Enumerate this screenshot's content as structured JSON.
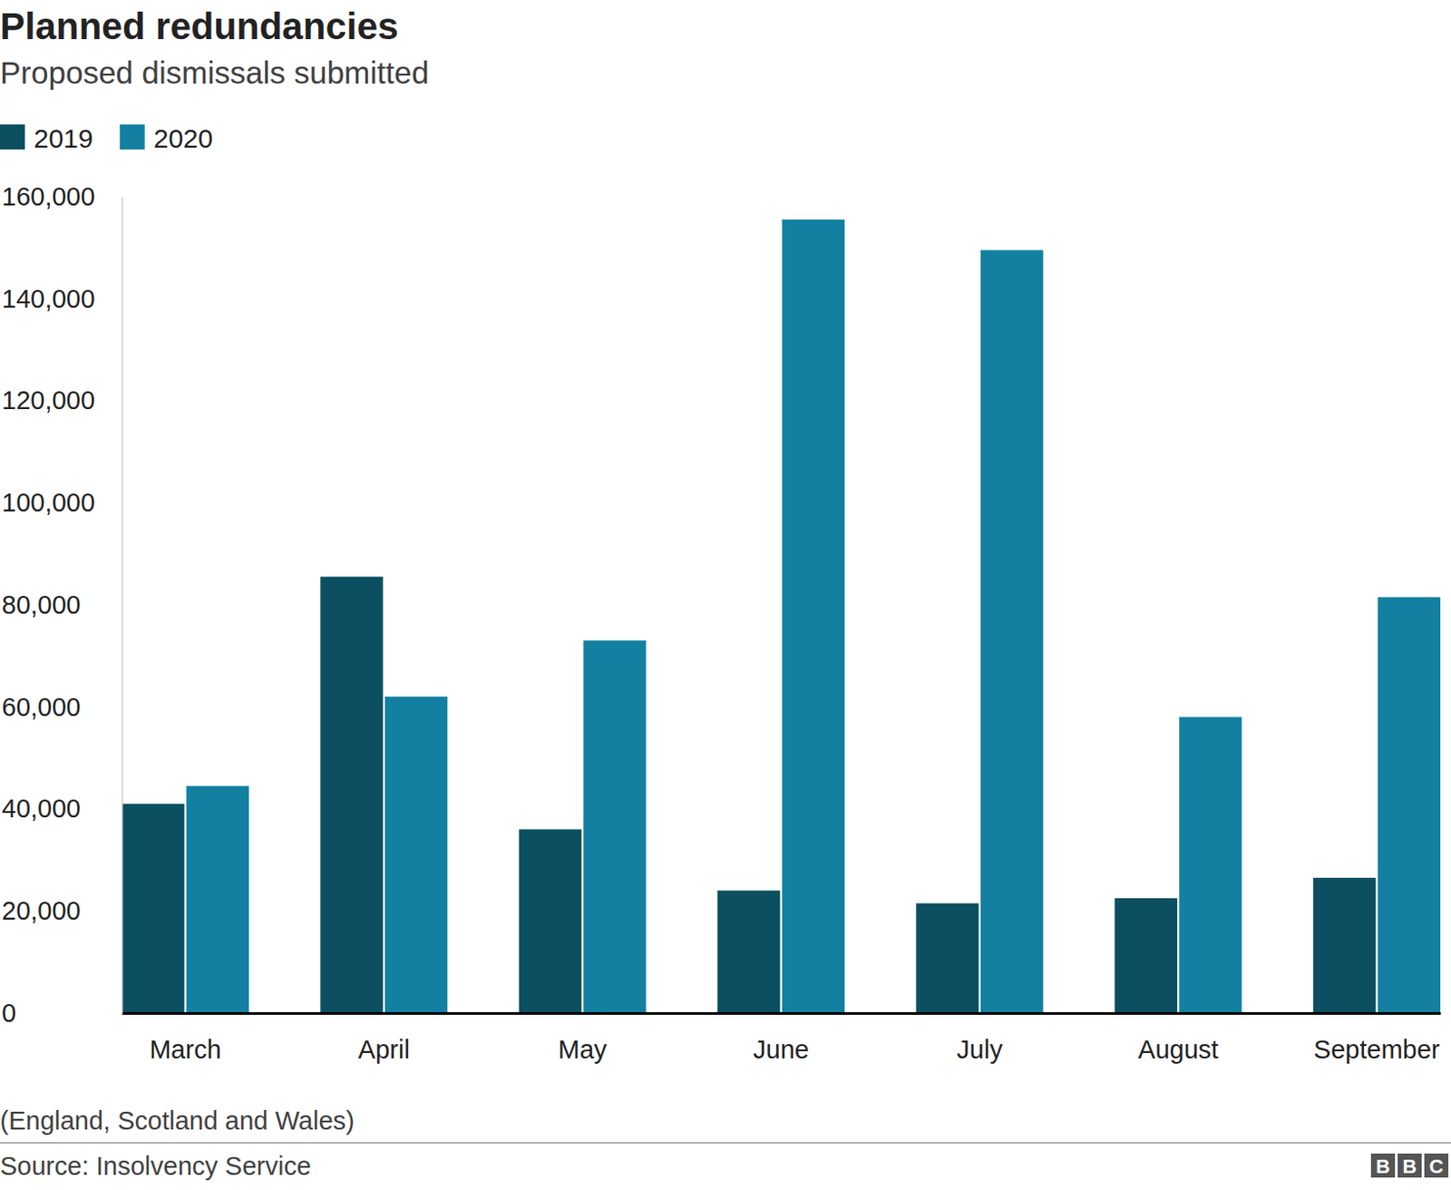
{
  "chart_data": {
    "type": "bar",
    "title": "Planned redundancies",
    "subtitle": "Proposed dismissals submitted",
    "note": "(England, Scotland and Wales)",
    "source": "Source: Insolvency Service",
    "branding": "BBC",
    "categories": [
      "March",
      "April",
      "May",
      "June",
      "July",
      "August",
      "September"
    ],
    "series": [
      {
        "name": "2019",
        "color": "#0b4f60",
        "values": [
          41000,
          85500,
          36000,
          24000,
          21500,
          22500,
          26500
        ]
      },
      {
        "name": "2020",
        "color": "#1380a1",
        "values": [
          44500,
          62000,
          73000,
          155500,
          149500,
          58000,
          81500
        ]
      }
    ],
    "ylim": [
      0,
      160000
    ],
    "yticks": [
      0,
      20000,
      40000,
      60000,
      80000,
      100000,
      120000,
      140000,
      160000
    ],
    "ytick_labels": [
      "0",
      "20,000",
      "40,000",
      "60,000",
      "80,000",
      "100,000",
      "120,000",
      "140,000",
      "160,000"
    ],
    "grid": false,
    "legend": "top-left"
  }
}
